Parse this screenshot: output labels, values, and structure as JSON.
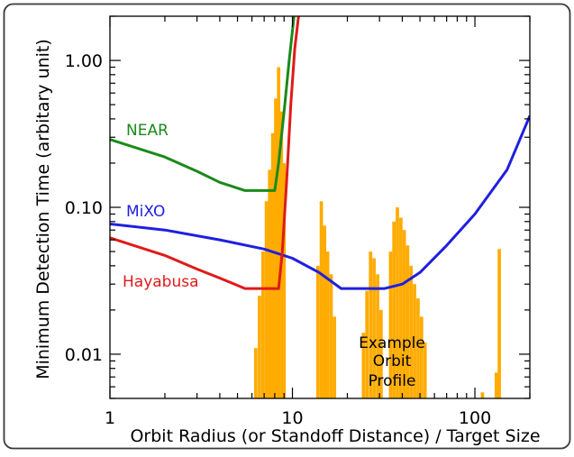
{
  "chart_data": {
    "type": "line",
    "xlabel": "Orbit Radius (or Standoff Distance) / Target Size",
    "ylabel": "Minimum Detection Time (arbitary unit)",
    "xscale": "log",
    "yscale": "log",
    "xlim": [
      1,
      200
    ],
    "ylim": [
      0.005,
      2.0
    ],
    "x_ticks": [
      {
        "value": 1,
        "label": "1"
      },
      {
        "value": 10,
        "label": "10"
      },
      {
        "value": 100,
        "label": "100"
      }
    ],
    "y_ticks": [
      {
        "value": 0.01,
        "label": "0.01"
      },
      {
        "value": 0.1,
        "label": "0.10"
      },
      {
        "value": 1,
        "label": "1.00"
      }
    ],
    "series": [
      {
        "name": "NEAR",
        "color": "#1a8a1a",
        "points": [
          [
            1,
            0.29
          ],
          [
            2,
            0.22
          ],
          [
            3,
            0.176
          ],
          [
            4,
            0.148
          ],
          [
            5.5,
            0.13
          ],
          [
            6.5,
            0.13
          ],
          [
            8,
            0.13
          ],
          [
            8.4,
            0.2
          ],
          [
            9,
            0.45
          ],
          [
            9.6,
            1.0
          ],
          [
            10.2,
            2.0
          ]
        ]
      },
      {
        "name": "MiXO",
        "color": "#1f1fe0",
        "points": [
          [
            1,
            0.077
          ],
          [
            2,
            0.07
          ],
          [
            4,
            0.06
          ],
          [
            7,
            0.052
          ],
          [
            10,
            0.045
          ],
          [
            14,
            0.036
          ],
          [
            18.5,
            0.028
          ],
          [
            26,
            0.028
          ],
          [
            32,
            0.028
          ],
          [
            40,
            0.03
          ],
          [
            50,
            0.036
          ],
          [
            70,
            0.055
          ],
          [
            100,
            0.09
          ],
          [
            150,
            0.18
          ],
          [
            200,
            0.42
          ]
        ]
      },
      {
        "name": "Hayabusa",
        "color": "#e01a1a",
        "points": [
          [
            1,
            0.062
          ],
          [
            2,
            0.047
          ],
          [
            3,
            0.038
          ],
          [
            4,
            0.033
          ],
          [
            5.5,
            0.028
          ],
          [
            7,
            0.028
          ],
          [
            8.4,
            0.028
          ],
          [
            8.8,
            0.05
          ],
          [
            9.3,
            0.15
          ],
          [
            9.8,
            0.5
          ],
          [
            10.3,
            1.2
          ],
          [
            10.8,
            2.0
          ]
        ]
      }
    ],
    "histogram": {
      "name": "Example Orbit Profile",
      "color": "#ffab00",
      "bars": [
        [
          6.3,
          0.011
        ],
        [
          6.6,
          0.025
        ],
        [
          6.9,
          0.05
        ],
        [
          7.2,
          0.11
        ],
        [
          7.5,
          0.18
        ],
        [
          7.8,
          0.32
        ],
        [
          8.1,
          0.55
        ],
        [
          8.4,
          0.9
        ],
        [
          8.7,
          0.45
        ],
        [
          9.0,
          0.2
        ],
        [
          13.8,
          0.04
        ],
        [
          14.4,
          0.11
        ],
        [
          15.0,
          0.075
        ],
        [
          15.6,
          0.05
        ],
        [
          16.3,
          0.035
        ],
        [
          17.0,
          0.018
        ],
        [
          24.5,
          0.014
        ],
        [
          25.6,
          0.027
        ],
        [
          26.8,
          0.05
        ],
        [
          28.0,
          0.045
        ],
        [
          29.3,
          0.035
        ],
        [
          30.6,
          0.02
        ],
        [
          34.5,
          0.05
        ],
        [
          36.0,
          0.08
        ],
        [
          37.6,
          0.1
        ],
        [
          39.3,
          0.085
        ],
        [
          41.0,
          0.07
        ],
        [
          42.8,
          0.055
        ],
        [
          44.7,
          0.04
        ],
        [
          46.7,
          0.03
        ],
        [
          48.8,
          0.024
        ],
        [
          51.0,
          0.018
        ],
        [
          53.3,
          0.012
        ],
        [
          110,
          0.0055
        ],
        [
          131,
          0.0075
        ],
        [
          136,
          0.052
        ]
      ]
    },
    "annotations": [
      {
        "text": "NEAR",
        "color": "#1a8a1a"
      },
      {
        "text": "MiXO",
        "color": "#1f1fe0"
      },
      {
        "text": "Hayabusa",
        "color": "#e01a1a"
      },
      {
        "lines": [
          "Example",
          "Orbit",
          "Profile"
        ],
        "color": "#000000"
      }
    ]
  }
}
